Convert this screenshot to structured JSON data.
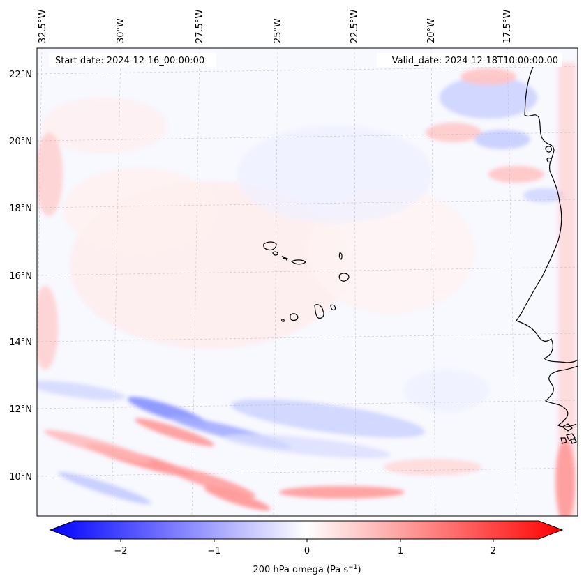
{
  "map": {
    "header": {
      "start_label": "Start date: 2024-12-16_00:00:00",
      "valid_label": "Valid_date: 2024-12-18T10:00:00.00"
    },
    "lon_ticks": [
      "32.5°W",
      "30°W",
      "27.5°W",
      "25°W",
      "22.5°W",
      "20°W",
      "17.5°W"
    ],
    "lat_ticks": [
      "22°N",
      "20°N",
      "18°N",
      "16°N",
      "14°N",
      "12°N",
      "10°N"
    ],
    "colorbar": {
      "ticks": [
        "−2",
        "−1",
        "0",
        "1",
        "2"
      ],
      "label": "200 hPa omega (Pa s",
      "label_sup": "−1",
      "label_end": ")",
      "colormap": [
        "#0000ff",
        "#ffffff",
        "#ff0000"
      ],
      "range": [
        -2.6,
        2.6
      ]
    },
    "field_colors": {
      "neg": "#6f7dff",
      "pos": "#ff7f7f",
      "coast": "#000000"
    }
  }
}
